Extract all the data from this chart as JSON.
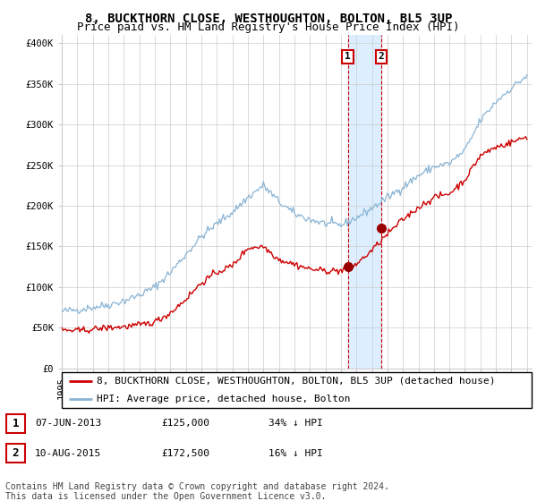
{
  "title": "8, BUCKTHORN CLOSE, WESTHOUGHTON, BOLTON, BL5 3UP",
  "subtitle": "Price paid vs. HM Land Registry's House Price Index (HPI)",
  "ylabel_ticks": [
    "£0",
    "£50K",
    "£100K",
    "£150K",
    "£200K",
    "£250K",
    "£300K",
    "£350K",
    "£400K"
  ],
  "ytick_values": [
    0,
    50000,
    100000,
    150000,
    200000,
    250000,
    300000,
    350000,
    400000
  ],
  "ylim": [
    0,
    410000
  ],
  "xlim_start": 1995.0,
  "xlim_end": 2025.3,
  "transaction1": {
    "date_x": 2013.44,
    "price": 125000,
    "label": "1",
    "date_str": "07-JUN-2013",
    "pct": "34% ↓ HPI"
  },
  "transaction2": {
    "date_x": 2015.61,
    "price": 172500,
    "label": "2",
    "date_str": "10-AUG-2015",
    "pct": "16% ↓ HPI"
  },
  "legend_line1": "8, BUCKTHORN CLOSE, WESTHOUGHTON, BOLTON, BL5 3UP (detached house)",
  "legend_line2": "HPI: Average price, detached house, Bolton",
  "footnote": "Contains HM Land Registry data © Crown copyright and database right 2024.\nThis data is licensed under the Open Government Licence v3.0.",
  "hpi_color": "#8ab4d4",
  "price_color": "#cc0000",
  "marker_color": "#990000",
  "shading_color": "#ddeeff",
  "grid_color": "#cccccc",
  "background_color": "#ffffff",
  "title_fontsize": 10,
  "subtitle_fontsize": 9,
  "tick_fontsize": 7.5,
  "legend_fontsize": 8,
  "footnote_fontsize": 7,
  "hpi_base": [
    70000,
    72000,
    75000,
    78000,
    83000,
    90000,
    100000,
    118000,
    140000,
    162000,
    178000,
    192000,
    210000,
    225000,
    205000,
    190000,
    183000,
    178000,
    176000,
    185000,
    197000,
    210000,
    223000,
    237000,
    248000,
    252000,
    268000,
    305000,
    328000,
    345000,
    360000
  ],
  "price_base": [
    47000,
    46000,
    48000,
    50000,
    51000,
    53000,
    57000,
    68000,
    85000,
    105000,
    118000,
    126000,
    148000,
    150000,
    134000,
    128000,
    122000,
    120000,
    120000,
    128000,
    145000,
    165000,
    183000,
    198000,
    210000,
    215000,
    232000,
    262000,
    272000,
    278000,
    285000
  ]
}
